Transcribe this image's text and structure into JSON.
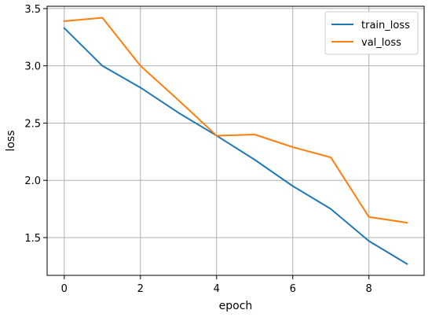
{
  "chart_data": {
    "type": "line",
    "title": "",
    "xlabel": "epoch",
    "ylabel": "loss",
    "x": [
      0,
      1,
      2,
      3,
      4,
      5,
      6,
      7,
      8,
      9
    ],
    "series": [
      {
        "name": "train_loss",
        "color": "#1f77b4",
        "values": [
          3.33,
          3.0,
          2.81,
          2.59,
          2.39,
          2.18,
          1.95,
          1.75,
          1.47,
          1.27
        ]
      },
      {
        "name": "val_loss",
        "color": "#ff7f0e",
        "values": [
          3.39,
          3.42,
          3.0,
          2.7,
          2.39,
          2.4,
          2.29,
          2.2,
          1.68,
          1.63
        ]
      }
    ],
    "xticks": [
      0,
      2,
      4,
      6,
      8
    ],
    "xtick_labels": [
      "0",
      "2",
      "4",
      "6",
      "8"
    ],
    "yticks": [
      1.5,
      2.0,
      2.5,
      3.0,
      3.5
    ],
    "ytick_labels": [
      "1.5",
      "2.0",
      "2.5",
      "3.0",
      "3.5"
    ],
    "xlim": [
      -0.45,
      9.45
    ],
    "ylim": [
      1.17,
      3.52
    ],
    "grid": true,
    "legend_position": "top-right"
  }
}
